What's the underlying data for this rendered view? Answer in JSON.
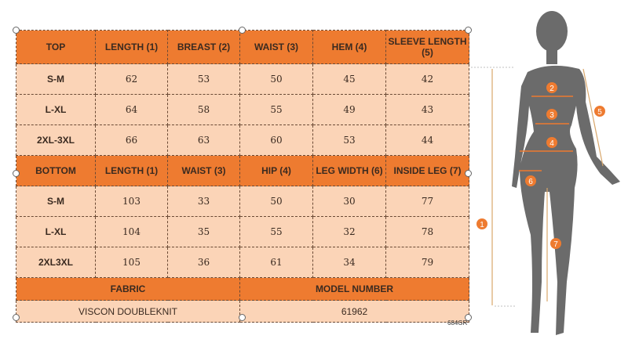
{
  "top": {
    "headers": [
      "TOP",
      "LENGTH (1)",
      "BREAST (2)",
      "WAIST (3)",
      "HEM (4)",
      "SLEEVE LENGTH (5)"
    ],
    "rows": [
      [
        "S-M",
        "62",
        "53",
        "50",
        "45",
        "42"
      ],
      [
        "L-XL",
        "64",
        "58",
        "55",
        "49",
        "43"
      ],
      [
        "2XL-3XL",
        "66",
        "63",
        "60",
        "53",
        "44"
      ]
    ]
  },
  "bottom": {
    "headers": [
      "BOTTOM",
      "LENGTH (1)",
      "WAIST (3)",
      "HIP (4)",
      "LEG WIDTH (6)",
      "INSIDE LEG (7)"
    ],
    "rows": [
      [
        "S-M",
        "103",
        "33",
        "50",
        "30",
        "77"
      ],
      [
        "L-XL",
        "104",
        "35",
        "55",
        "32",
        "78"
      ],
      [
        "2XL3XL",
        "105",
        "36",
        "61",
        "34",
        "79"
      ]
    ]
  },
  "fabric": {
    "label": "FABRIC",
    "value": "VISCON DOUBLEKNIT"
  },
  "model": {
    "label": "MODEL NUMBER",
    "value": "61962"
  },
  "code": "684GR",
  "figure": {
    "markers": [
      "1",
      "2",
      "3",
      "4",
      "5",
      "6",
      "7"
    ]
  },
  "colors": {
    "header": "#ee7b30",
    "cell": "#fbd4b7",
    "silhouette": "#6b6b6b"
  }
}
